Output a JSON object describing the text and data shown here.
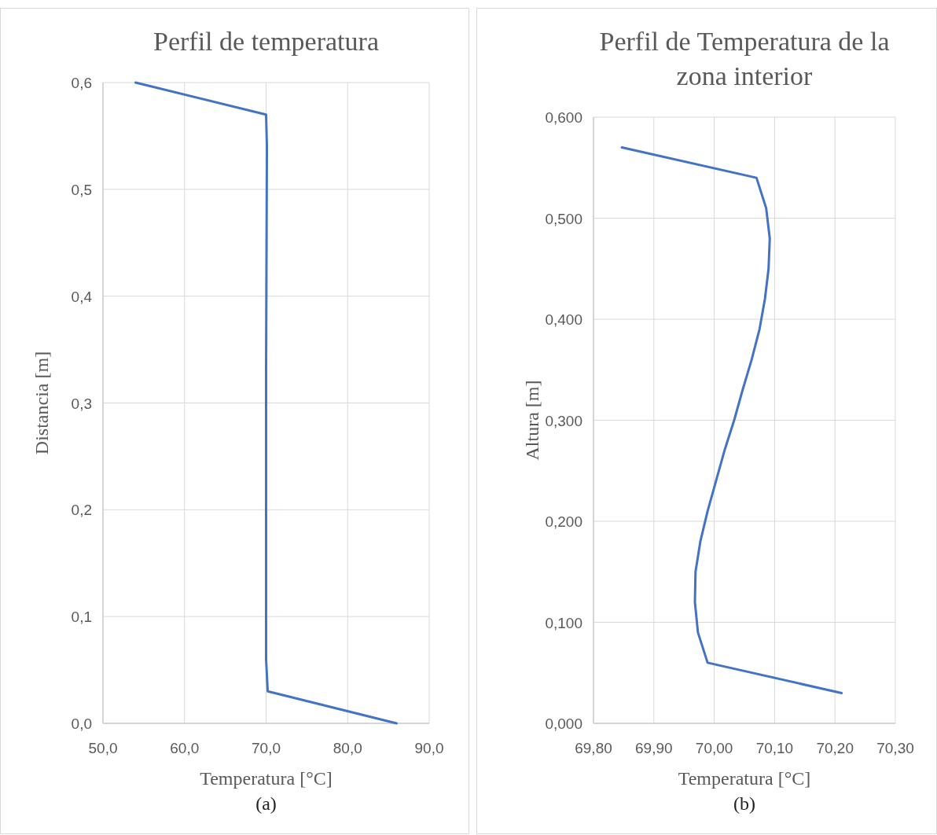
{
  "chart_data": [
    {
      "type": "line",
      "title": "Perfil de temperatura",
      "xlabel": "Temperatura [°C]",
      "ylabel": "Distancia [m]",
      "annotations": [
        "(a)"
      ],
      "series": [
        {
          "color": "#4472c4",
          "x": [
            54.0,
            70.0,
            70.1,
            70.0,
            70.0,
            70.2,
            86.0
          ],
          "values": [
            0.6,
            0.57,
            0.54,
            0.33,
            0.06,
            0.03,
            0.0
          ]
        }
      ],
      "xlim": [
        50,
        90
      ],
      "xticks": [
        {
          "value": 50,
          "label": "50,0"
        },
        {
          "value": 60,
          "label": "60,0"
        },
        {
          "value": 70,
          "label": "70,0"
        },
        {
          "value": 80,
          "label": "80,0"
        },
        {
          "value": 90,
          "label": "90,0"
        }
      ],
      "ylim": [
        0,
        0.6
      ],
      "yticks": [
        {
          "value": 0,
          "label": "0,0"
        },
        {
          "value": 0.1,
          "label": "0,1"
        },
        {
          "value": 0.2,
          "label": "0,2"
        },
        {
          "value": 0.3,
          "label": "0,3"
        },
        {
          "value": 0.4,
          "label": "0,4"
        },
        {
          "value": 0.5,
          "label": "0,5"
        },
        {
          "value": 0.6,
          "label": "0,6"
        }
      ],
      "grid": true
    },
    {
      "type": "line",
      "title": "Perfil de Temperatura de la zona interior",
      "xlabel": "Temperatura [°C]",
      "ylabel": "Altura [m]",
      "annotations": [
        "(b)"
      ],
      "series": [
        {
          "color": "#4472c4",
          "x": [
            69.847,
            70.07,
            70.086,
            70.092,
            70.09,
            70.084,
            70.075,
            70.062,
            70.047,
            70.033,
            70.017,
            70.003,
            69.989,
            69.977,
            69.969,
            69.968,
            69.973,
            69.989,
            70.211
          ],
          "values": [
            0.57,
            0.54,
            0.51,
            0.48,
            0.45,
            0.42,
            0.39,
            0.36,
            0.33,
            0.3,
            0.27,
            0.24,
            0.21,
            0.18,
            0.15,
            0.12,
            0.09,
            0.06,
            0.03
          ]
        }
      ],
      "xlim": [
        69.8,
        70.3
      ],
      "xticks": [
        {
          "value": 69.8,
          "label": "69,80"
        },
        {
          "value": 69.9,
          "label": "69,90"
        },
        {
          "value": 70.0,
          "label": "70,00"
        },
        {
          "value": 70.1,
          "label": "70,10"
        },
        {
          "value": 70.2,
          "label": "70,20"
        },
        {
          "value": 70.3,
          "label": "70,30"
        }
      ],
      "ylim": [
        0,
        0.6
      ],
      "yticks": [
        {
          "value": 0,
          "label": "0,000"
        },
        {
          "value": 0.1,
          "label": "0,100"
        },
        {
          "value": 0.2,
          "label": "0,200"
        },
        {
          "value": 0.3,
          "label": "0,300"
        },
        {
          "value": 0.4,
          "label": "0,400"
        },
        {
          "value": 0.5,
          "label": "0,500"
        },
        {
          "value": 0.6,
          "label": "0,600"
        }
      ],
      "grid": true
    }
  ]
}
